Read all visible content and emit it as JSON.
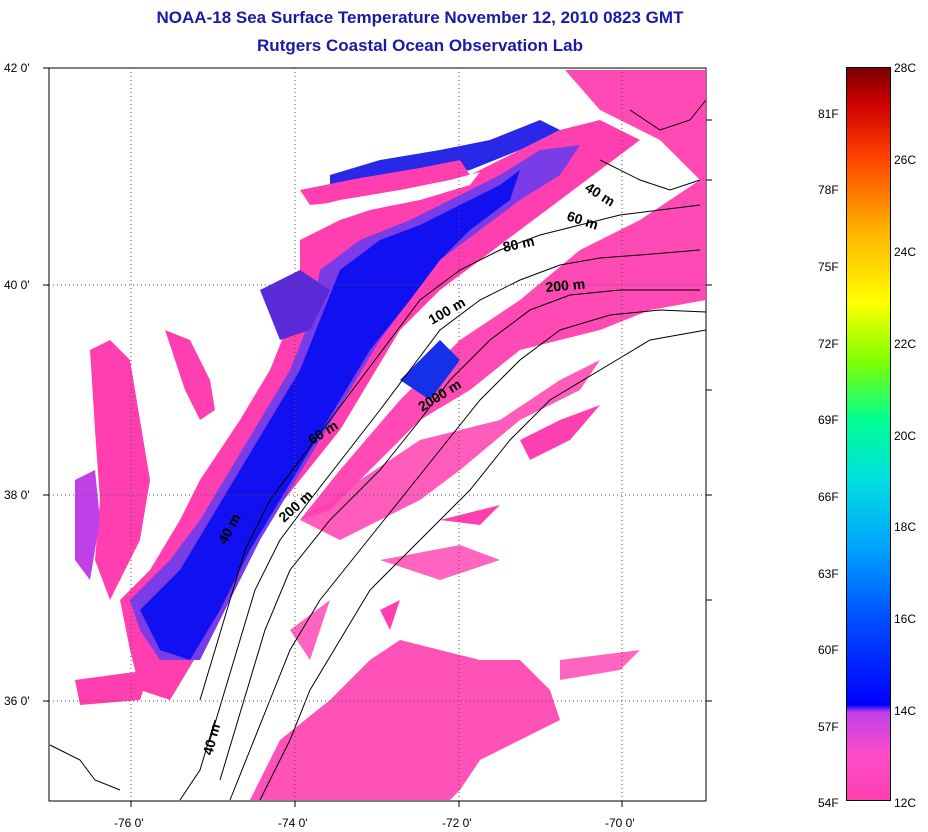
{
  "title_line1": "NOAA-18 Sea Surface Temperature November 12, 2010 0823 GMT",
  "title_line2": "Rutgers Coastal Ocean Observation Lab",
  "lat_labels": [
    "42 0'",
    "40 0'",
    "38 0'",
    "36 0'"
  ],
  "lon_labels": [
    "-76 0'",
    "-74 0'",
    "-72 0'",
    "-70 0'"
  ],
  "contours": [
    "40 m",
    "60 m",
    "80 m",
    "200 m",
    "100 m",
    "2000 m",
    "60 m",
    "200 m",
    "40 m",
    "40 m"
  ],
  "colorbar": {
    "celsius": [
      "28C",
      "26C",
      "24C",
      "22C",
      "20C",
      "18C",
      "16C",
      "14C",
      "12C"
    ],
    "fahrenheit": [
      "81F",
      "78F",
      "75F",
      "72F",
      "69F",
      "66F",
      "63F",
      "60F",
      "57F",
      "54F"
    ]
  },
  "colors": {
    "title": "#1a1aa6",
    "cold_water": "#ff3fb0",
    "mid_water": "#0000ff",
    "land": "#ffffff"
  }
}
